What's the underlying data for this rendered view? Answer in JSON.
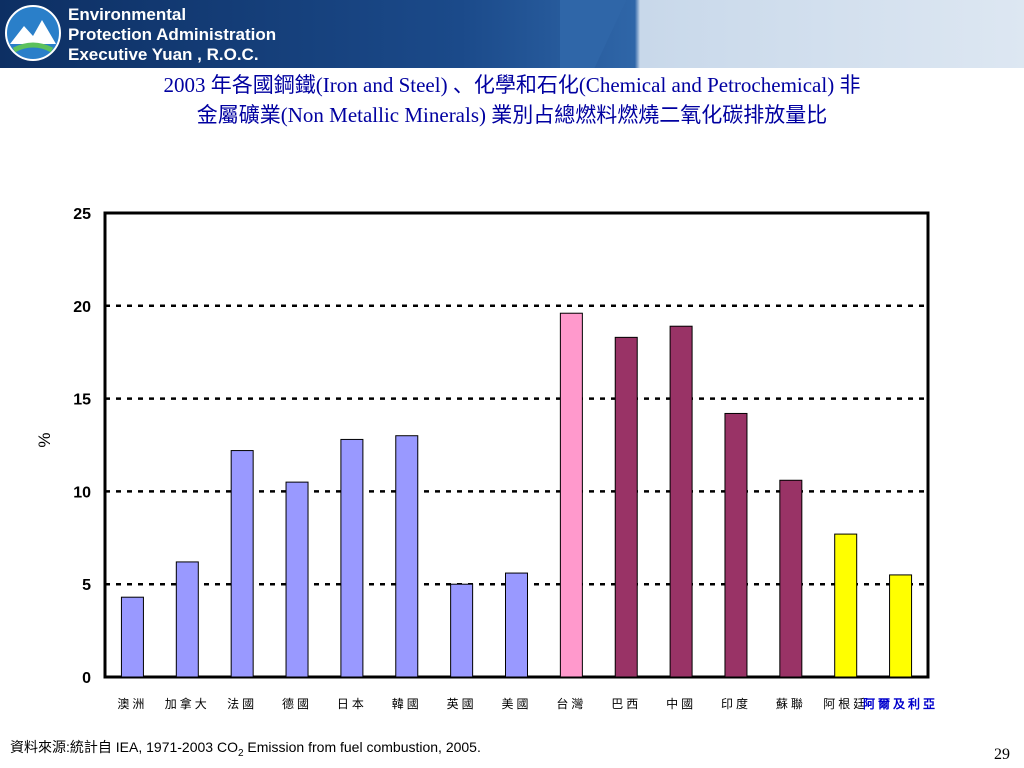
{
  "header": {
    "org_lines": [
      "Environmental",
      "Protection Administration",
      "Executive  Yuan , R.O.C."
    ]
  },
  "title_lines": [
    "2003 年各國鋼鐵(Iron and Steel) 、化學和石化(Chemical and Petrochemical) 非",
    "金屬礦業(Non Metallic Minerals) 業別占總燃料燃燒二氧化碳排放量比"
  ],
  "chart_data": {
    "type": "bar",
    "ylabel": "%",
    "xlabel": "",
    "ylim": [
      0,
      25
    ],
    "yticks": [
      0,
      5,
      10,
      15,
      20,
      25
    ],
    "grid": "dashed horizontal",
    "categories": [
      "澳洲",
      "加拿大",
      "法國",
      "德國",
      "日本",
      "韓國",
      "英國",
      "美國",
      "台灣",
      "巴西",
      "中國",
      "印度",
      "蘇聯",
      "阿根廷",
      "阿爾及利亞"
    ],
    "values": [
      4.3,
      6.2,
      12.2,
      10.5,
      12.8,
      13.0,
      5.0,
      5.6,
      19.6,
      18.3,
      18.9,
      14.2,
      10.6,
      7.7,
      5.5
    ],
    "colors": [
      "#9999ff",
      "#9999ff",
      "#9999ff",
      "#9999ff",
      "#9999ff",
      "#9999ff",
      "#9999ff",
      "#9999ff",
      "#ff99cc",
      "#993366",
      "#993366",
      "#993366",
      "#993366",
      "#ffff00",
      "#ffff00"
    ],
    "label_colors": [
      "#000000",
      "#000000",
      "#000000",
      "#000000",
      "#000000",
      "#000000",
      "#000000",
      "#000000",
      "#000000",
      "#000000",
      "#000000",
      "#000000",
      "#000000",
      "#000000",
      "#0000cc"
    ]
  },
  "footer": {
    "source_prefix": "資料來源:統計自 ",
    "source_main": "IEA, 1971-2003 CO",
    "source_sub": "2",
    "source_suffix": " Emission from fuel combustion, 2005.",
    "page_number": "29"
  }
}
